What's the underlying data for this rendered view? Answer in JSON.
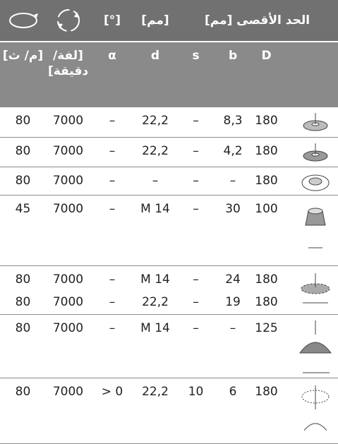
{
  "header": {
    "max_label": "الحد الأقصى [مم]",
    "unit_mm": "[مم]",
    "unit_deg": "[°]",
    "columns": [
      "D",
      "b",
      "s",
      "d",
      "α",
      "[لفة/ دقيقة]",
      "[م/ ث]"
    ]
  },
  "table": {
    "rows": [
      [
        "180",
        "8,3",
        "–",
        "22,2",
        "–",
        "7000",
        "80"
      ],
      [
        "180",
        "4,2",
        "–",
        "22,2",
        "–",
        "7000",
        "80"
      ],
      [
        "180",
        "–",
        "–",
        "–",
        "–",
        "7000",
        "80"
      ],
      [
        "100",
        "30",
        "–",
        "M 14",
        "–",
        "7000",
        "45"
      ],
      [
        "180",
        "24",
        "–",
        "M 14",
        "–",
        "7000",
        "80"
      ],
      [
        "180",
        "19",
        "–",
        "22,2",
        "–",
        "7000",
        "80"
      ],
      [
        "125",
        "–",
        "–",
        "M 14",
        "–",
        "7000",
        "80"
      ],
      [
        "180",
        "6",
        "10",
        "22,2",
        "0 <",
        "7000",
        "80"
      ]
    ]
  }
}
